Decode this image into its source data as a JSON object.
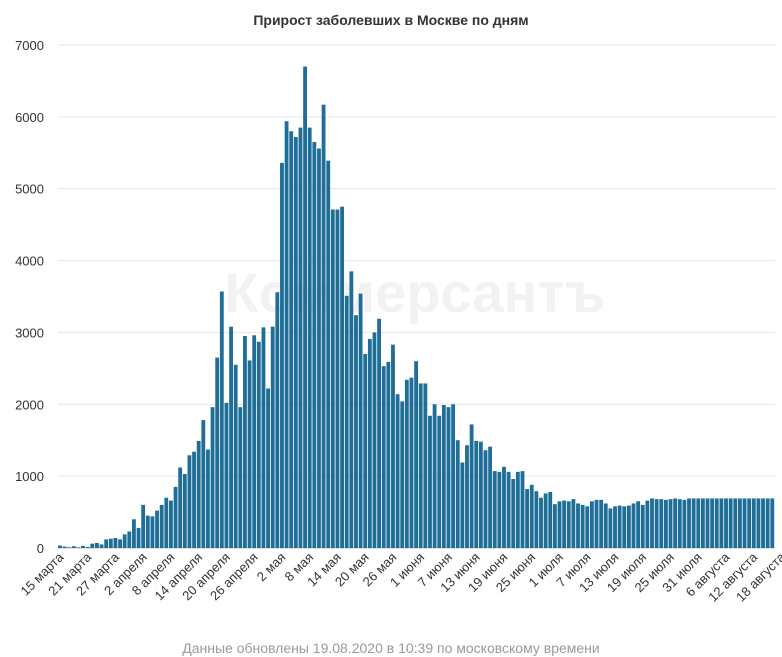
{
  "chart_data": {
    "type": "bar",
    "title": "Прирост заболевших в Москве по дням",
    "footer": "Данные обновлены 19.08.2020 в 10:39 по московскому времени",
    "watermark": "Коммерсантъ",
    "ylim": [
      0,
      7000
    ],
    "yticks": [
      0,
      1000,
      2000,
      3000,
      4000,
      5000,
      6000,
      7000
    ],
    "xtick_labels": [
      "15 марта",
      "21 марта",
      "27 марта",
      "2 апреля",
      "8 апреля",
      "14 апреля",
      "20 апреля",
      "26 апреля",
      "2 мая",
      "8 мая",
      "14 мая",
      "20 мая",
      "26 мая",
      "1 июня",
      "7 июня",
      "13 июня",
      "19 июня",
      "25 июня",
      "1 июля",
      "7 июля",
      "13 июля",
      "19 июля",
      "25 июля",
      "31 июля",
      "6 августа",
      "12 августа",
      "18 августа"
    ],
    "label_every": 6,
    "first_day": "15 марта",
    "last_day": "18 августа",
    "bar_color": "#1f6e97",
    "grid": true,
    "values": [
      35,
      20,
      10,
      25,
      10,
      30,
      15,
      60,
      70,
      50,
      120,
      130,
      140,
      120,
      190,
      230,
      400,
      280,
      600,
      450,
      440,
      520,
      600,
      700,
      660,
      850,
      1120,
      1030,
      1290,
      1340,
      1490,
      1780,
      1370,
      1960,
      2650,
      3570,
      2020,
      3080,
      2550,
      1960,
      2950,
      2610,
      2960,
      2870,
      3070,
      2220,
      3080,
      3560,
      5360,
      5940,
      5800,
      5720,
      5850,
      6700,
      5850,
      5650,
      5560,
      6170,
      5390,
      4710,
      4710,
      4750,
      3510,
      3850,
      3240,
      3540,
      2700,
      2910,
      3000,
      3190,
      2530,
      2590,
      2830,
      2140,
      2040,
      2340,
      2370,
      2600,
      2290,
      2290,
      1840,
      2000,
      1840,
      1990,
      1960,
      2000,
      1500,
      1190,
      1430,
      1720,
      1490,
      1480,
      1360,
      1410,
      1070,
      1060,
      1130,
      1060,
      960,
      1060,
      1070,
      820,
      880,
      790,
      700,
      760,
      780,
      610,
      650,
      660,
      650,
      680,
      620,
      600,
      580,
      650,
      670,
      670,
      620,
      550,
      580,
      590,
      580,
      590,
      620,
      650,
      600,
      660,
      690,
      680,
      680,
      670,
      680,
      690,
      680,
      670,
      690,
      690,
      690,
      690,
      690,
      690,
      690,
      690,
      690,
      690,
      690,
      690,
      690,
      690,
      690,
      690,
      690,
      690,
      690
    ]
  }
}
